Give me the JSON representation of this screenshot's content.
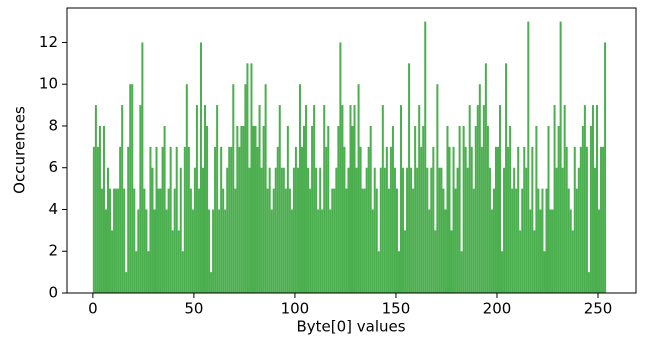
{
  "chart_data": {
    "type": "histogram",
    "xlabel": "Byte[0] values",
    "ylabel": "Occurences",
    "color": "#4caf4f",
    "bins": [
      0,
      1,
      2,
      3,
      4,
      5,
      6,
      7,
      8,
      9,
      10,
      11,
      12,
      13,
      14,
      15,
      16,
      17,
      18,
      19,
      20,
      21,
      22,
      23,
      24,
      25,
      26,
      27,
      28,
      29,
      30,
      31,
      32,
      33,
      34,
      35,
      36,
      37,
      38,
      39,
      40,
      41,
      42,
      43,
      44,
      45,
      46,
      47,
      48,
      49,
      50,
      51,
      52,
      53,
      54,
      55,
      56,
      57,
      58,
      59,
      60,
      61,
      62,
      63,
      64,
      65,
      66,
      67,
      68,
      69,
      70,
      71,
      72,
      73,
      74,
      75,
      76,
      77,
      78,
      79,
      80,
      81,
      82,
      83,
      84,
      85,
      86,
      87,
      88,
      89,
      90,
      91,
      92,
      93,
      94,
      95,
      96,
      97,
      98,
      99,
      100,
      101,
      102,
      103,
      104,
      105,
      106,
      107,
      108,
      109,
      110,
      111,
      112,
      113,
      114,
      115,
      116,
      117,
      118,
      119,
      120,
      121,
      122,
      123,
      124,
      125,
      126,
      127,
      128,
      129,
      130,
      131,
      132,
      133,
      134,
      135,
      136,
      137,
      138,
      139,
      140,
      141,
      142,
      143,
      144,
      145,
      146,
      147,
      148,
      149,
      150,
      151,
      152,
      153,
      154,
      155,
      156,
      157,
      158,
      159,
      160,
      161,
      162,
      163,
      164,
      165,
      166,
      167,
      168,
      169,
      170,
      171,
      172,
      173,
      174,
      175,
      176,
      177,
      178,
      179,
      180,
      181,
      182,
      183,
      184,
      185,
      186,
      187,
      188,
      189,
      190,
      191,
      192,
      193,
      194,
      195,
      196,
      197,
      198,
      199,
      200,
      201,
      202,
      203,
      204,
      205,
      206,
      207,
      208,
      209,
      210,
      211,
      212,
      213,
      214,
      215,
      216,
      217,
      218,
      219,
      220,
      221,
      222,
      223,
      224,
      225,
      226,
      227,
      228,
      229,
      230,
      231,
      232,
      233,
      234,
      235,
      236,
      237,
      238,
      239,
      240,
      241,
      242,
      243,
      244,
      245,
      246,
      247,
      248,
      249,
      250,
      251,
      252,
      253,
      254,
      255,
      256
    ],
    "values": [
      7,
      9,
      7,
      8,
      5,
      8,
      4,
      6,
      5,
      3,
      5,
      5,
      5,
      7,
      9,
      5,
      1,
      7,
      10,
      10,
      5,
      2,
      4,
      9,
      12,
      5,
      4,
      2,
      7,
      6,
      4,
      7,
      5,
      5,
      7,
      8,
      4,
      5,
      7,
      3,
      5,
      7,
      3,
      6,
      2,
      7,
      10,
      7,
      5,
      4,
      6,
      9,
      5,
      12,
      6,
      9,
      8,
      4,
      1,
      4,
      7,
      9,
      4,
      7,
      5,
      4,
      6,
      7,
      7,
      10,
      5,
      8,
      7,
      8,
      8,
      10,
      11,
      6,
      11,
      8,
      8,
      7,
      9,
      6,
      8,
      10,
      5,
      6,
      4,
      5,
      6,
      7,
      9,
      6,
      6,
      5,
      8,
      5,
      4,
      6,
      7,
      6,
      10,
      7,
      8,
      9,
      6,
      5,
      8,
      9,
      6,
      4,
      6,
      4,
      9,
      7,
      8,
      4,
      5,
      5,
      6,
      8,
      12,
      9,
      7,
      5,
      6,
      9,
      8,
      9,
      6,
      10,
      7,
      5,
      5,
      6,
      7,
      8,
      4,
      6,
      5,
      2,
      6,
      9,
      6,
      7,
      5,
      7,
      8,
      6,
      5,
      2,
      9,
      6,
      3,
      6,
      11,
      6,
      5,
      8,
      6,
      9,
      7,
      8,
      13,
      6,
      4,
      6,
      7,
      3,
      10,
      6,
      6,
      5,
      4,
      8,
      7,
      3,
      7,
      5,
      6,
      8,
      2,
      8,
      7,
      6,
      9,
      7,
      5,
      8,
      9,
      10,
      7,
      9,
      11,
      8,
      6,
      4,
      5,
      7,
      7,
      9,
      2,
      6,
      11,
      7,
      8,
      5,
      6,
      5,
      7,
      3,
      5,
      7,
      6,
      13,
      4,
      7,
      3,
      8,
      5,
      4,
      5,
      2,
      5,
      8,
      4,
      4,
      9,
      6,
      8,
      13,
      6,
      9,
      7,
      5,
      4,
      3,
      7,
      5,
      6,
      7,
      8,
      9,
      7,
      1,
      8,
      9,
      6,
      9,
      4,
      7,
      7,
      12,
      0,
      0
    ],
    "xlim": [
      -12.8,
      268.8
    ],
    "xticks": [
      0,
      50,
      100,
      150,
      200,
      250
    ],
    "ylim": [
      0,
      13.65
    ],
    "yticks": [
      0,
      2,
      4,
      6,
      8,
      10,
      12
    ]
  }
}
